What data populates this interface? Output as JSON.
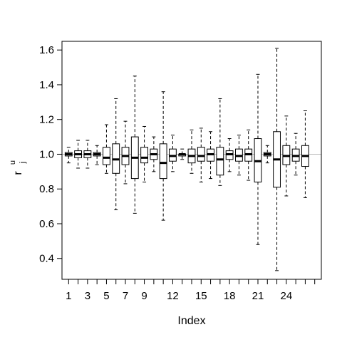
{
  "chart_data": {
    "type": "box",
    "title": "",
    "xlabel": "Index",
    "ylabel": "r",
    "ylabel_sup": "u",
    "ylabel_sub": "j",
    "ylim": [
      0.28,
      1.65
    ],
    "xlim": [
      0.3,
      27.7
    ],
    "reference_line": 1.0,
    "reference_color": "#bdbdbd",
    "y_ticks": [
      "0.4",
      "0.6",
      "0.8",
      "1.0",
      "1.2",
      "1.4",
      "1.6"
    ],
    "x_ticks": [
      "1",
      "3",
      "5",
      "7",
      "9",
      "12",
      "15",
      "18",
      "21",
      "24"
    ],
    "x_tick_positions": [
      1,
      3,
      5,
      7,
      9,
      12,
      15,
      18,
      21,
      24
    ],
    "x_minor_ticks": [
      2,
      4,
      6,
      8,
      10,
      11,
      13,
      14,
      16,
      17,
      19,
      20,
      22,
      23,
      25,
      26,
      27
    ],
    "boxes": [
      {
        "index": 1,
        "min": 0.95,
        "q1": 0.99,
        "median": 1.0,
        "q3": 1.01,
        "max": 1.04
      },
      {
        "index": 2,
        "min": 0.92,
        "q1": 0.98,
        "median": 1.0,
        "q3": 1.02,
        "max": 1.08
      },
      {
        "index": 3,
        "min": 0.92,
        "q1": 0.98,
        "median": 1.0,
        "q3": 1.02,
        "max": 1.08
      },
      {
        "index": 4,
        "min": 0.94,
        "q1": 0.99,
        "median": 1.0,
        "q3": 1.01,
        "max": 1.05
      },
      {
        "index": 5,
        "min": 0.89,
        "q1": 0.94,
        "median": 0.98,
        "q3": 1.04,
        "max": 1.17
      },
      {
        "index": 6,
        "min": 0.68,
        "q1": 0.89,
        "median": 0.97,
        "q3": 1.06,
        "max": 1.32
      },
      {
        "index": 7,
        "min": 0.83,
        "q1": 0.94,
        "median": 0.99,
        "q3": 1.04,
        "max": 1.19
      },
      {
        "index": 8,
        "min": 0.66,
        "q1": 0.86,
        "median": 0.98,
        "q3": 1.1,
        "max": 1.45
      },
      {
        "index": 9,
        "min": 0.84,
        "q1": 0.95,
        "median": 0.98,
        "q3": 1.04,
        "max": 1.16
      },
      {
        "index": 10,
        "min": 0.9,
        "q1": 0.97,
        "median": 1.0,
        "q3": 1.03,
        "max": 1.1
      },
      {
        "index": 11,
        "min": 0.62,
        "q1": 0.86,
        "median": 0.95,
        "q3": 1.06,
        "max": 1.36
      },
      {
        "index": 12,
        "min": 0.9,
        "q1": 0.96,
        "median": 0.99,
        "q3": 1.03,
        "max": 1.11
      },
      {
        "index": 13,
        "min": 0.97,
        "q1": 0.99,
        "median": 1.0,
        "q3": 1.0,
        "max": 1.03
      },
      {
        "index": 14,
        "min": 0.89,
        "q1": 0.95,
        "median": 0.99,
        "q3": 1.03,
        "max": 1.14
      },
      {
        "index": 15,
        "min": 0.84,
        "q1": 0.96,
        "median": 0.99,
        "q3": 1.04,
        "max": 1.15
      },
      {
        "index": 16,
        "min": 0.86,
        "q1": 0.96,
        "median": 1.0,
        "q3": 1.03,
        "max": 1.13
      },
      {
        "index": 17,
        "min": 0.82,
        "q1": 0.88,
        "median": 0.97,
        "q3": 1.04,
        "max": 1.32
      },
      {
        "index": 18,
        "min": 0.9,
        "q1": 0.97,
        "median": 1.0,
        "q3": 1.02,
        "max": 1.09
      },
      {
        "index": 19,
        "min": 0.88,
        "q1": 0.96,
        "median": 0.99,
        "q3": 1.03,
        "max": 1.11
      },
      {
        "index": 20,
        "min": 0.85,
        "q1": 0.96,
        "median": 1.0,
        "q3": 1.03,
        "max": 1.14
      },
      {
        "index": 21,
        "min": 0.48,
        "q1": 0.84,
        "median": 0.96,
        "q3": 1.09,
        "max": 1.46
      },
      {
        "index": 22,
        "min": 0.95,
        "q1": 0.99,
        "median": 1.0,
        "q3": 1.01,
        "max": 1.05
      },
      {
        "index": 23,
        "min": 0.33,
        "q1": 0.81,
        "median": 0.97,
        "q3": 1.13,
        "max": 1.61
      },
      {
        "index": 24,
        "min": 0.76,
        "q1": 0.94,
        "median": 0.99,
        "q3": 1.05,
        "max": 1.22
      },
      {
        "index": 25,
        "min": 0.88,
        "q1": 0.96,
        "median": 0.99,
        "q3": 1.03,
        "max": 1.12
      },
      {
        "index": 26,
        "min": 0.75,
        "q1": 0.93,
        "median": 0.99,
        "q3": 1.05,
        "max": 1.25
      }
    ]
  }
}
